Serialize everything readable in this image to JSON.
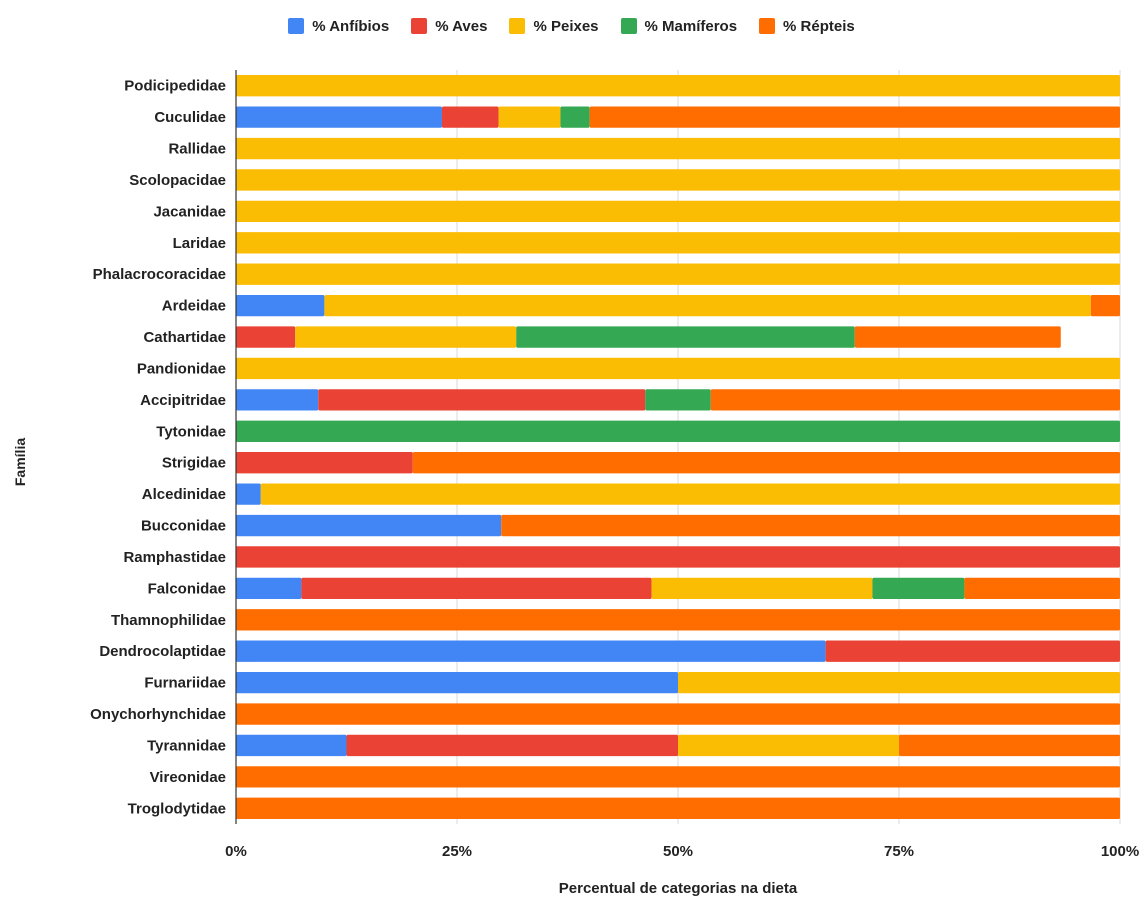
{
  "chart_data": {
    "type": "bar",
    "orientation": "horizontal",
    "stacked": "percent",
    "xlabel": "Percentual de categorias na dieta",
    "ylabel": "Família",
    "xlim": [
      0,
      100
    ],
    "x_ticks": [
      "0%",
      "25%",
      "50%",
      "75%",
      "100%"
    ],
    "grid": true,
    "legend_position": "top",
    "categories": [
      "Podicipedidae",
      "Cuculidae",
      "Rallidae",
      "Scolopacidae",
      "Jacanidae",
      "Laridae",
      "Phalacrocoracidae",
      "Ardeidae",
      "Cathartidae",
      "Pandionidae",
      "Accipitridae",
      "Tytonidae",
      "Strigidae",
      "Alcedinidae",
      "Bucconidae",
      "Ramphastidae",
      "Falconidae",
      "Thamnophilidae",
      "Dendrocolaptidae",
      "Furnariidae",
      "Onychorhynchidae",
      "Tyrannidae",
      "Vireonidae",
      "Troglodytidae"
    ],
    "series": [
      {
        "name": "% Anfíbios",
        "color": "#4285F4",
        "values": [
          0,
          23.3,
          0,
          0,
          0,
          0,
          0,
          10,
          0,
          0,
          9.3,
          0,
          0,
          2.8,
          30,
          0,
          7.4,
          0,
          66.7,
          50,
          0,
          12.5,
          0,
          0
        ]
      },
      {
        "name": "% Aves",
        "color": "#EA4335",
        "values": [
          0,
          6.4,
          0,
          0,
          0,
          0,
          0,
          0,
          6.7,
          0,
          37,
          0,
          20,
          0,
          0,
          100,
          39.6,
          0,
          33.3,
          0,
          0,
          37.5,
          0,
          0
        ]
      },
      {
        "name": "% Peixes",
        "color": "#FBBC04",
        "values": [
          100,
          7,
          100,
          100,
          100,
          100,
          100,
          86.7,
          25,
          100,
          0,
          0,
          0,
          97.2,
          0,
          0,
          25,
          0,
          0,
          50,
          0,
          25,
          0,
          0
        ]
      },
      {
        "name": "% Mamíferos",
        "color": "#34A853",
        "values": [
          0,
          3.3,
          0,
          0,
          0,
          0,
          0,
          0,
          38.3,
          0,
          7.4,
          100,
          0,
          0,
          0,
          0,
          10.4,
          0,
          0,
          0,
          0,
          0,
          0,
          0
        ]
      },
      {
        "name": "% Répteis",
        "color": "#FF6D01",
        "values": [
          0,
          60,
          0,
          0,
          0,
          0,
          0,
          3.3,
          23.3,
          0,
          46.3,
          0,
          80,
          0,
          70,
          0,
          17.6,
          100,
          0,
          0,
          100,
          25,
          100,
          100
        ]
      }
    ]
  }
}
